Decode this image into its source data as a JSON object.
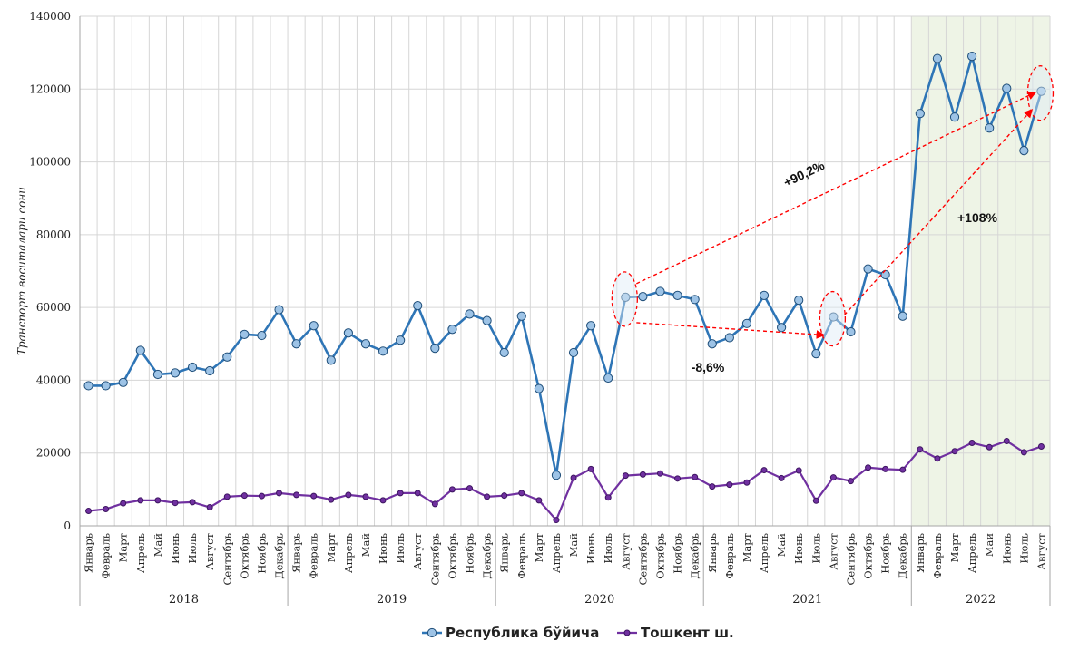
{
  "chart_data": {
    "type": "line",
    "ylabel": "Транспорт воситалари сони",
    "ylim": [
      0,
      140000
    ],
    "yticks": [
      "0",
      "20000",
      "40000",
      "60000",
      "80000",
      "100000",
      "120000",
      "140000"
    ],
    "months": [
      "Январь",
      "Февраль",
      "Март",
      "Апрель",
      "Май",
      "Июнь",
      "Июль",
      "Август",
      "Сентябрь",
      "Октябрь",
      "Ноябрь",
      "Декабрь"
    ],
    "years": [
      {
        "label": "2018",
        "months": 12
      },
      {
        "label": "2019",
        "months": 12
      },
      {
        "label": "2020",
        "months": 12
      },
      {
        "label": "2021",
        "months": 12
      },
      {
        "label": "2022",
        "months": 8
      }
    ],
    "highlight_year": "2022",
    "grid": true,
    "legend": "bottom",
    "series": [
      {
        "name": "Республика бўйича",
        "color": "#2E75B6",
        "marker_fill": "#9DC3E6",
        "values": [
          38500,
          38500,
          39400,
          48200,
          41600,
          42000,
          43600,
          42600,
          46400,
          52600,
          52300,
          59400,
          50000,
          55000,
          45500,
          53000,
          50000,
          48000,
          51000,
          60500,
          48800,
          54000,
          58200,
          56400,
          47600,
          57600,
          37700,
          13900,
          47600,
          55000,
          40600,
          62800,
          63000,
          64400,
          63300,
          62200,
          50000,
          51700,
          55600,
          63300,
          54500,
          62000,
          47300,
          57400,
          53300,
          70600,
          69000,
          57600,
          113300,
          128400,
          112300,
          129000,
          109300,
          120200,
          103100,
          119400
        ]
      },
      {
        "name": "Тошкент ш.",
        "color": "#7030A0",
        "marker_fill": "#7030A0",
        "values": [
          4100,
          4600,
          6200,
          7000,
          7000,
          6300,
          6500,
          5100,
          8000,
          8300,
          8200,
          9000,
          8500,
          8200,
          7200,
          8500,
          8000,
          7000,
          9000,
          9000,
          6000,
          10000,
          10300,
          8000,
          8300,
          9000,
          7000,
          1600,
          13200,
          15600,
          7800,
          13800,
          14100,
          14400,
          13000,
          13400,
          10800,
          11300,
          11900,
          15300,
          13100,
          15200,
          6900,
          13300,
          12300,
          16000,
          15600,
          15400,
          21000,
          18500,
          20500,
          22800,
          21600,
          23300,
          20200,
          21800
        ]
      }
    ],
    "annotations": [
      {
        "text": "+90,2%",
        "from_index": 31,
        "to_index": 55
      },
      {
        "text": "-8,6%",
        "from_index": 31,
        "to_index": 43
      },
      {
        "text": "+108%",
        "from_index": 43,
        "to_index": 55
      }
    ]
  }
}
